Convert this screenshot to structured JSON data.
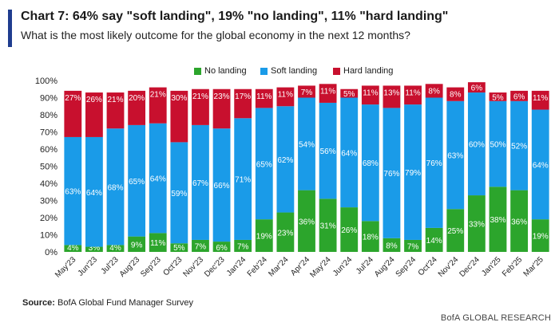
{
  "header": {
    "title": "Chart 7: 64% say \"soft landing\", 19% \"no landing\", 11% \"hard landing\"",
    "subtitle": "What is the most likely outcome for the global economy in the next 12 months?"
  },
  "footer": {
    "source_label": "Source:",
    "source_text": " BofA Global Fund Manager Survey",
    "brand": "BofA GLOBAL RESEARCH"
  },
  "colors": {
    "no_landing": "#2ca52c",
    "soft_landing": "#1a9be8",
    "hard_landing": "#c8102e",
    "accent": "#1f3d8f"
  },
  "chart_data": {
    "type": "bar",
    "stacked": true,
    "categories": [
      "May'23",
      "Jun'23",
      "Jul'23",
      "Aug'23",
      "Sep'23",
      "Oct'23",
      "Nov'23",
      "Dec'23",
      "Jan'24",
      "Feb'24",
      "Mar'24",
      "Apr'24",
      "May'24",
      "Jun'24",
      "Jul'24",
      "Aug'24",
      "Sep'24",
      "Oct'24",
      "Nov'24",
      "Dec'24",
      "Jan'25",
      "Feb'25",
      "Mar'25"
    ],
    "series": [
      {
        "name": "No landing",
        "color": "#2ca52c",
        "values": [
          4,
          3,
          4,
          9,
          11,
          5,
          7,
          6,
          7,
          19,
          23,
          36,
          31,
          26,
          18,
          8,
          7,
          14,
          25,
          33,
          38,
          36,
          19
        ],
        "labels": [
          "4%",
          "3%",
          "4%",
          "9%",
          "11%",
          "5%",
          "7%",
          "6%",
          "7%",
          "19%",
          "23%",
          "36%",
          "31%",
          "26%",
          "18%",
          "8%",
          "7%",
          "14%",
          "25%",
          "33%",
          "38%",
          "36%",
          "19%"
        ]
      },
      {
        "name": "Soft landing",
        "color": "#1a9be8",
        "values": [
          63,
          64,
          68,
          65,
          64,
          59,
          67,
          66,
          71,
          65,
          62,
          54,
          56,
          64,
          68,
          76,
          79,
          76,
          63,
          60,
          50,
          52,
          64
        ],
        "labels": [
          "63%",
          "64%",
          "68%",
          "65%",
          "64%",
          "59%",
          "67%",
          "66%",
          "71%",
          "65%",
          "62%",
          "54%",
          "56%",
          "64%",
          "68%",
          "76%",
          "79%",
          "76%",
          "63%",
          "60%",
          "50%",
          "52%",
          "64%"
        ]
      },
      {
        "name": "Hard landing",
        "color": "#c8102e",
        "values": [
          27,
          26,
          21,
          20,
          21,
          30,
          21,
          23,
          17,
          11,
          11,
          7,
          11,
          5,
          11,
          13,
          11,
          8,
          8,
          6,
          5,
          6,
          11
        ],
        "labels": [
          "27%",
          "26%",
          "21%",
          "20%",
          "21%",
          "30%",
          "21%",
          "23%",
          "17%",
          "11%",
          "11%",
          "7%",
          "11%",
          "5%",
          "11%",
          "13%",
          "11%",
          "8%",
          "8%",
          "6%",
          "5%",
          "6%",
          "11%"
        ]
      }
    ],
    "ylim": [
      0,
      100
    ],
    "yticks": [
      "0%",
      "10%",
      "20%",
      "30%",
      "40%",
      "50%",
      "60%",
      "70%",
      "80%",
      "90%",
      "100%"
    ],
    "grid": false,
    "legend_position": "top-center"
  }
}
